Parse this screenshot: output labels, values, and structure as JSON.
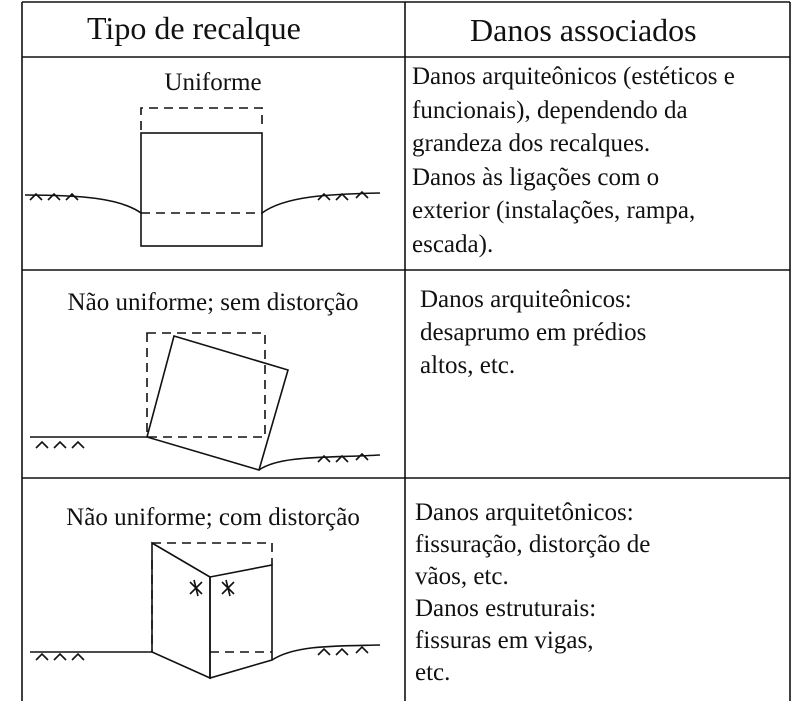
{
  "header": {
    "col1": "Tipo de recalque",
    "col2": "Danos associados"
  },
  "rows": [
    {
      "type": "Uniforme",
      "damage": [
        "Danos arquiteônicos (estéticos e",
        "funcionais), dependendo da",
        "grandeza dos recalques.",
        "Danos às ligações com o",
        "exterior (instalações, rampa,",
        "escada)."
      ]
    },
    {
      "type": "Não uniforme; sem distorção",
      "damage": [
        "Danos arquiteônicos:",
        "desaprumo em prédios",
        "altos, etc."
      ]
    },
    {
      "type": "Não uniforme; com distorção",
      "damage": [
        "Danos arquitetônicos:",
        "fissuração, distorção de",
        "vãos, etc.",
        "Danos estruturais:",
        "fissuras em vigas,",
        "etc."
      ]
    }
  ]
}
